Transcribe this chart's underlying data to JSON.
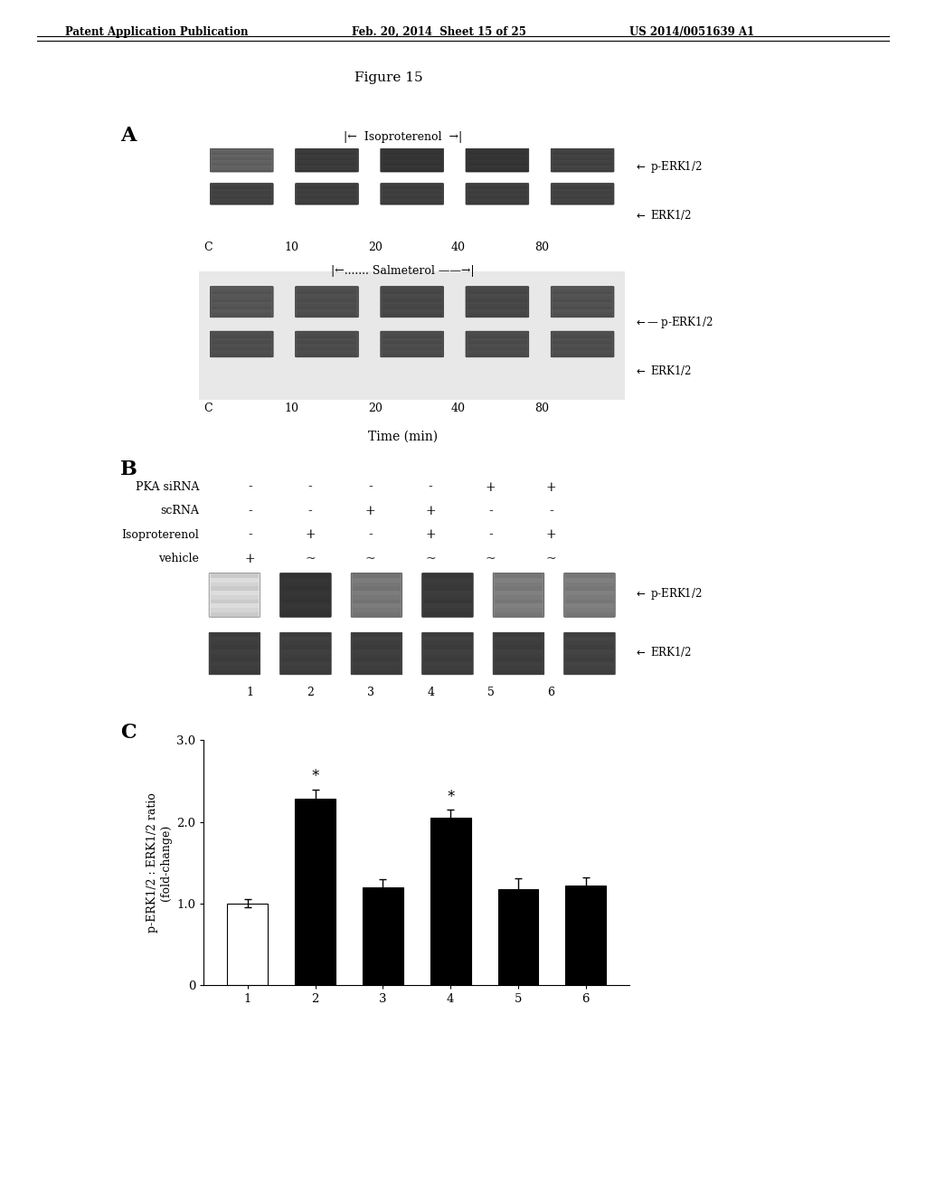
{
  "page_header_left": "Patent Application Publication",
  "page_header_mid": "Feb. 20, 2014  Sheet 15 of 25",
  "page_header_right": "US 2014/0051639 A1",
  "figure_title": "Figure 15",
  "panel_A": {
    "label": "A",
    "blot1_title": "|← Isoproterenol →|",
    "blot2_title": "|←....... Salmeterol ——→|",
    "time_labels": [
      "C",
      "10",
      "20",
      "40",
      "80"
    ],
    "xlabel": "Time (min)",
    "perk_iso_intensities": [
      0.72,
      0.92,
      0.95,
      0.95,
      0.88
    ],
    "erk_iso_intensities": [
      0.88,
      0.9,
      0.9,
      0.9,
      0.88
    ],
    "perk_sal_intensities": [
      0.78,
      0.82,
      0.85,
      0.85,
      0.8
    ],
    "erk_sal_intensities": [
      0.82,
      0.83,
      0.83,
      0.83,
      0.82
    ]
  },
  "panel_B": {
    "label": "B",
    "row_labels": [
      "PKA siRNA",
      "scRNA",
      "Isoproterenol",
      "vehicle"
    ],
    "col_signs": [
      [
        "-",
        "-",
        "-",
        "-",
        "+",
        "+"
      ],
      [
        "-",
        "-",
        "+",
        "+",
        "-",
        "-"
      ],
      [
        "-",
        "+",
        "-",
        "+",
        "-",
        "+"
      ],
      [
        "+",
        "~",
        "~",
        "~",
        "~",
        "~"
      ]
    ],
    "col_numbers": [
      "1",
      "2",
      "3",
      "4",
      "5",
      "6"
    ],
    "perk_intensities": [
      0.12,
      0.95,
      0.6,
      0.92,
      0.58,
      0.58
    ],
    "erk_intensities": [
      0.9,
      0.9,
      0.9,
      0.9,
      0.9,
      0.88
    ]
  },
  "panel_C": {
    "label": "C",
    "bar_values": [
      1.0,
      2.28,
      1.2,
      2.05,
      1.18,
      1.22
    ],
    "bar_errors": [
      0.05,
      0.12,
      0.1,
      0.1,
      0.13,
      0.1
    ],
    "bar_colors": [
      "white",
      "black",
      "black",
      "black",
      "black",
      "black"
    ],
    "starred": [
      false,
      true,
      false,
      true,
      false,
      false
    ],
    "x_labels": [
      "1",
      "2",
      "3",
      "4",
      "5",
      "6"
    ],
    "ylabel": "p-ERK1/2 : ERK1/2 ratio\n(fold-change)",
    "ylim": [
      0,
      3.0
    ],
    "yticks": [
      0,
      1.0,
      2.0,
      3.0
    ]
  },
  "bg_color": "#ffffff",
  "text_color": "#000000"
}
